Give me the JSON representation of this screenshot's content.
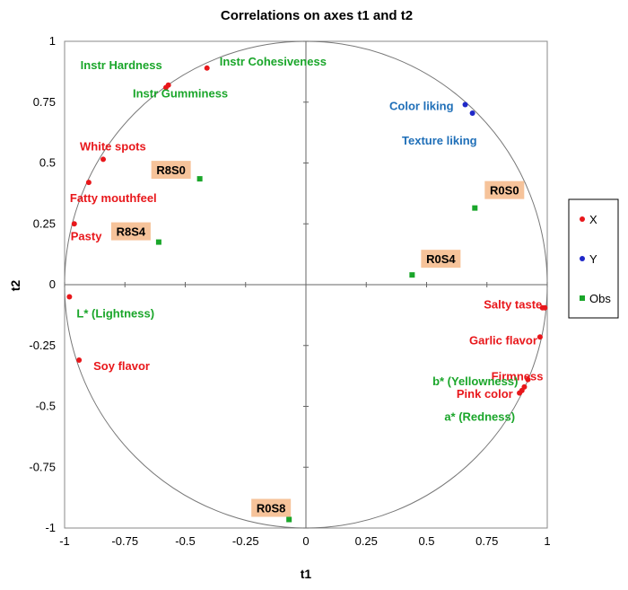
{
  "chart_data": {
    "type": "scatter",
    "title": "Correlations on axes t1 and t2",
    "xlabel": "t1",
    "ylabel": "t2",
    "xlim": [
      -1,
      1
    ],
    "ylim": [
      -1,
      1
    ],
    "xticks": [
      "-1",
      "-0.75",
      "-0.5",
      "-0.25",
      "0",
      "0.25",
      "0.5",
      "0.75",
      "1"
    ],
    "yticks": [
      "1",
      "0.75",
      "0.5",
      "0.25",
      "0",
      "-0.25",
      "-0.5",
      "-0.75",
      "-1"
    ],
    "grid": false,
    "legend_position": "right",
    "colors": {
      "X": "#e8171b",
      "Y": "#1f28c8",
      "Obs": "#1aa62a",
      "label_x": "#e8171b",
      "label_y": "#1f6fb8",
      "label_obs_var": "#1aa62a",
      "obs_box": "#f6c39a"
    },
    "series": [
      {
        "name": "X",
        "marker": "circle",
        "points": [
          {
            "x": -0.57,
            "y": 0.82,
            "label": "Instr Hardness",
            "lc": "green"
          },
          {
            "x": -0.41,
            "y": 0.89,
            "label": "Instr Cohesiveness",
            "lc": "green"
          },
          {
            "x": -0.58,
            "y": 0.81,
            "label": "Instr  Gumminess",
            "lc": "green"
          },
          {
            "x": -0.84,
            "y": 0.515,
            "label": "White spots",
            "lc": "red"
          },
          {
            "x": -0.9,
            "y": 0.42,
            "label": "Fatty mouthfeel",
            "lc": "red"
          },
          {
            "x": -0.96,
            "y": 0.25,
            "label": "Pasty",
            "lc": "red"
          },
          {
            "x": -0.98,
            "y": -0.05,
            "label": "L* (Lightness)",
            "lc": "green"
          },
          {
            "x": -0.94,
            "y": -0.31,
            "label": "Soy flavor",
            "lc": "red"
          },
          {
            "x": 0.99,
            "y": -0.095,
            "label": "Salty taste",
            "lc": "red"
          },
          {
            "x": 0.98,
            "y": -0.095,
            "label": "",
            "lc": "red"
          },
          {
            "x": 0.97,
            "y": -0.215,
            "label": "Garlic flavor",
            "lc": "red"
          },
          {
            "x": 0.92,
            "y": -0.39,
            "label": "Firmness",
            "lc": "red"
          },
          {
            "x": 0.905,
            "y": -0.42,
            "label": "b* (Yellowness)",
            "lc": "green"
          },
          {
            "x": 0.895,
            "y": -0.435,
            "label": "Pink color",
            "lc": "red"
          },
          {
            "x": 0.885,
            "y": -0.445,
            "label": "a* (Redness)",
            "lc": "green"
          }
        ]
      },
      {
        "name": "Y",
        "marker": "circle",
        "points": [
          {
            "x": 0.66,
            "y": 0.74,
            "label": "Color liking"
          },
          {
            "x": 0.69,
            "y": 0.705,
            "label": "Texture liking"
          }
        ]
      },
      {
        "name": "Obs",
        "marker": "square",
        "points": [
          {
            "x": -0.44,
            "y": 0.435,
            "label": "R8S0"
          },
          {
            "x": -0.61,
            "y": 0.175,
            "label": "R8S4"
          },
          {
            "x": 0.7,
            "y": 0.315,
            "label": "R0S0"
          },
          {
            "x": 0.44,
            "y": 0.04,
            "label": "R0S4"
          },
          {
            "x": -0.07,
            "y": -0.965,
            "label": "R0S8"
          }
        ]
      }
    ],
    "legend": [
      "X",
      "Y",
      "Obs"
    ]
  }
}
